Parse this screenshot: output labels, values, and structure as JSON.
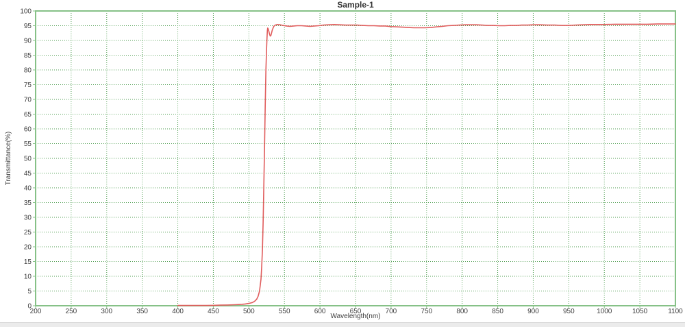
{
  "chart_data": {
    "type": "line",
    "title": "Sample-1",
    "xlabel": "Wavelength(nm)",
    "ylabel": "Transmittance(%)",
    "xlim": [
      200,
      1100
    ],
    "ylim": [
      0,
      100
    ],
    "xticks": [
      200,
      250,
      300,
      350,
      400,
      450,
      500,
      550,
      600,
      650,
      700,
      750,
      800,
      850,
      900,
      950,
      1000,
      1050,
      1100
    ],
    "yticks": [
      0,
      5,
      10,
      15,
      20,
      25,
      30,
      35,
      40,
      45,
      50,
      55,
      60,
      65,
      70,
      75,
      80,
      85,
      90,
      95,
      100
    ],
    "grid": "dotted, at every x tick (50 nm) and every y tick (5 %)",
    "legend": "none",
    "colors": {
      "curve": "#e05c5c",
      "grid": "#4f9e51",
      "border": "#86c187",
      "tick_text": "#3c3c3c",
      "title_text": "#333333"
    },
    "series": [
      {
        "name": "Sample-1 transmittance",
        "points": [
          [
            400,
            0.1
          ],
          [
            410,
            0.1
          ],
          [
            420,
            0.1
          ],
          [
            430,
            0.1
          ],
          [
            440,
            0.1
          ],
          [
            450,
            0.15
          ],
          [
            460,
            0.2
          ],
          [
            470,
            0.25
          ],
          [
            480,
            0.35
          ],
          [
            490,
            0.5
          ],
          [
            495,
            0.6
          ],
          [
            500,
            0.8
          ],
          [
            505,
            1.1
          ],
          [
            508,
            1.5
          ],
          [
            511,
            2.2
          ],
          [
            513,
            3.2
          ],
          [
            515,
            5
          ],
          [
            517,
            9
          ],
          [
            518,
            13
          ],
          [
            519,
            19
          ],
          [
            520,
            28
          ],
          [
            521,
            40
          ],
          [
            522,
            54
          ],
          [
            523,
            68
          ],
          [
            524,
            80
          ],
          [
            525,
            88
          ],
          [
            525.5,
            91
          ],
          [
            526,
            93.3
          ],
          [
            526.5,
            94.2
          ],
          [
            527,
            94.0
          ],
          [
            528,
            93.2
          ],
          [
            529,
            92.2
          ],
          [
            530,
            91.5
          ],
          [
            531,
            91.7
          ],
          [
            532,
            92.6
          ],
          [
            533,
            93.6
          ],
          [
            535,
            94.8
          ],
          [
            537,
            95.2
          ],
          [
            540,
            95.4
          ],
          [
            544,
            95.3
          ],
          [
            548,
            95.1
          ],
          [
            553,
            94.9
          ],
          [
            558,
            94.8
          ],
          [
            563,
            94.9
          ],
          [
            568,
            95.0
          ],
          [
            574,
            95.0
          ],
          [
            580,
            94.9
          ],
          [
            586,
            94.8
          ],
          [
            592,
            94.9
          ],
          [
            598,
            95.0
          ],
          [
            605,
            95.2
          ],
          [
            612,
            95.3
          ],
          [
            620,
            95.4
          ],
          [
            628,
            95.3
          ],
          [
            636,
            95.2
          ],
          [
            644,
            95.2
          ],
          [
            652,
            95.2
          ],
          [
            660,
            95.1
          ],
          [
            668,
            95.0
          ],
          [
            676,
            95.0
          ],
          [
            684,
            94.9
          ],
          [
            692,
            94.9
          ],
          [
            700,
            94.7
          ],
          [
            708,
            94.6
          ],
          [
            716,
            94.5
          ],
          [
            724,
            94.4
          ],
          [
            732,
            94.3
          ],
          [
            740,
            94.3
          ],
          [
            748,
            94.3
          ],
          [
            756,
            94.4
          ],
          [
            764,
            94.6
          ],
          [
            772,
            94.8
          ],
          [
            780,
            95.0
          ],
          [
            788,
            95.1
          ],
          [
            796,
            95.2
          ],
          [
            804,
            95.3
          ],
          [
            812,
            95.3
          ],
          [
            820,
            95.3
          ],
          [
            828,
            95.2
          ],
          [
            836,
            95.1
          ],
          [
            844,
            95.1
          ],
          [
            852,
            95.0
          ],
          [
            860,
            95.0
          ],
          [
            868,
            95.1
          ],
          [
            876,
            95.1
          ],
          [
            884,
            95.2
          ],
          [
            892,
            95.2
          ],
          [
            900,
            95.3
          ],
          [
            910,
            95.3
          ],
          [
            920,
            95.2
          ],
          [
            930,
            95.2
          ],
          [
            940,
            95.1
          ],
          [
            950,
            95.1
          ],
          [
            960,
            95.2
          ],
          [
            970,
            95.3
          ],
          [
            980,
            95.4
          ],
          [
            990,
            95.4
          ],
          [
            1000,
            95.4
          ],
          [
            1015,
            95.5
          ],
          [
            1030,
            95.5
          ],
          [
            1045,
            95.5
          ],
          [
            1060,
            95.5
          ],
          [
            1075,
            95.6
          ],
          [
            1090,
            95.6
          ],
          [
            1100,
            95.6
          ]
        ]
      }
    ]
  }
}
